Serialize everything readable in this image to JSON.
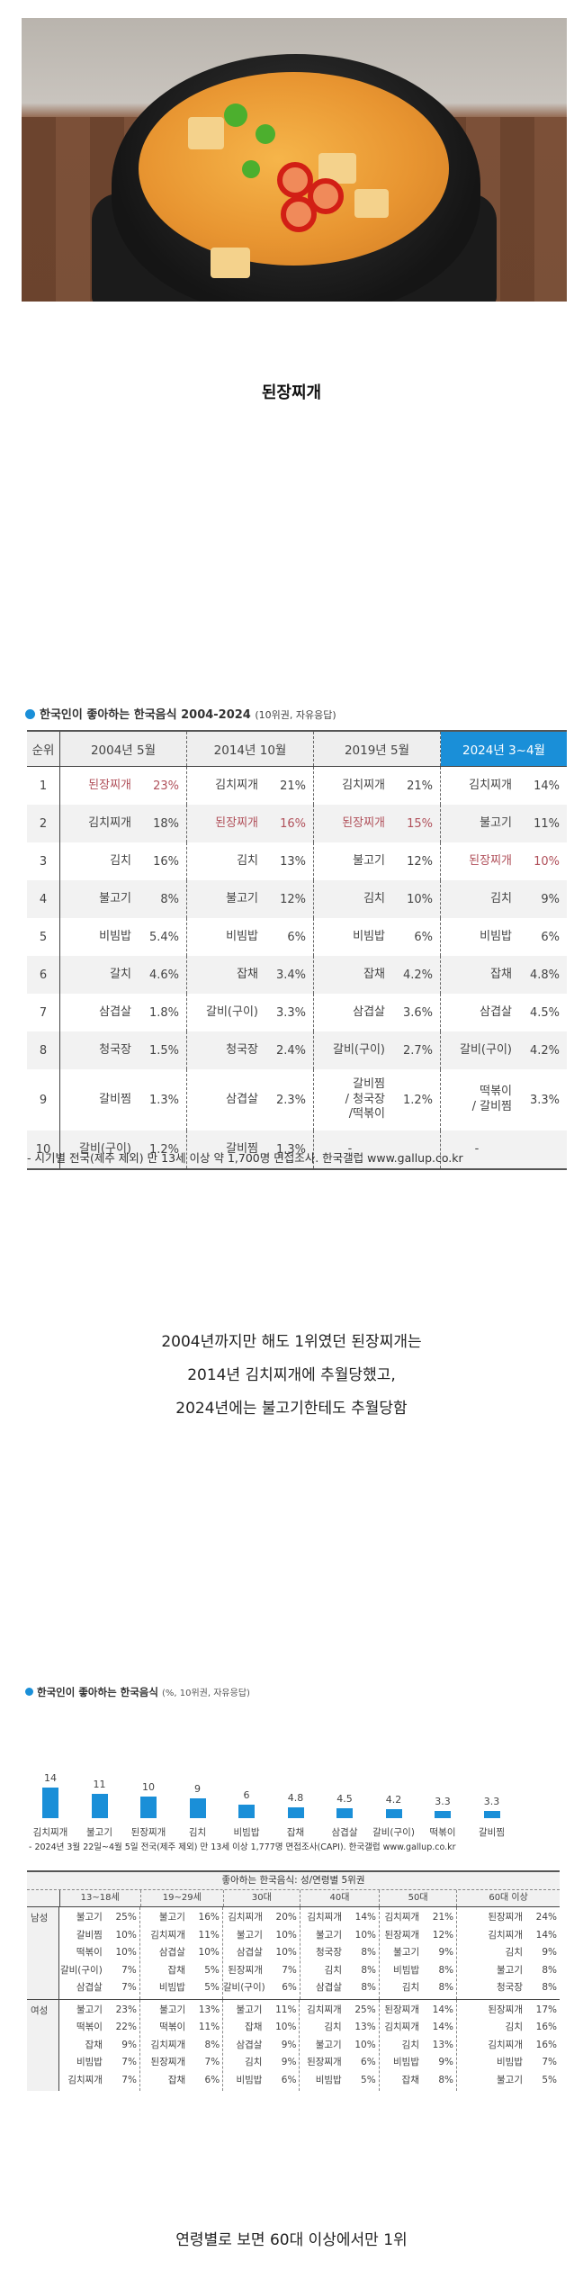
{
  "photo": {
    "alt": "된장찌개 in black earthenware pot (ttukbaegi) on wooden board"
  },
  "title": "된장찌개",
  "table1": {
    "header_title": "한국인이 좋아하는 한국음식 2004-2024",
    "header_sub": "(10위권, 자유응답)",
    "columns": [
      "순위",
      "2004년 5월",
      "2014년 10월",
      "2019년 5월",
      "2024년 3~4월"
    ],
    "highlight_color": "#1a8fd8",
    "highlight_text_color": "#b0505a",
    "rows": [
      {
        "rank": "1",
        "cells": [
          [
            "된장찌개",
            "23%"
          ],
          [
            "김치찌개",
            "21%"
          ],
          [
            "김치찌개",
            "21%"
          ],
          [
            "김치찌개",
            "14%"
          ]
        ]
      },
      {
        "rank": "2",
        "cells": [
          [
            "김치찌개",
            "18%"
          ],
          [
            "된장찌개",
            "16%"
          ],
          [
            "된장찌개",
            "15%"
          ],
          [
            "불고기",
            "11%"
          ]
        ]
      },
      {
        "rank": "3",
        "cells": [
          [
            "김치",
            "16%"
          ],
          [
            "김치",
            "13%"
          ],
          [
            "불고기",
            "12%"
          ],
          [
            "된장찌개",
            "10%"
          ]
        ]
      },
      {
        "rank": "4",
        "cells": [
          [
            "불고기",
            "8%"
          ],
          [
            "불고기",
            "12%"
          ],
          [
            "김치",
            "10%"
          ],
          [
            "김치",
            "9%"
          ]
        ]
      },
      {
        "rank": "5",
        "cells": [
          [
            "비빔밥",
            "5.4%"
          ],
          [
            "비빔밥",
            "6%"
          ],
          [
            "비빔밥",
            "6%"
          ],
          [
            "비빔밥",
            "6%"
          ]
        ]
      },
      {
        "rank": "6",
        "cells": [
          [
            "갈치",
            "4.6%"
          ],
          [
            "잡채",
            "3.4%"
          ],
          [
            "잡채",
            "4.2%"
          ],
          [
            "잡채",
            "4.8%"
          ]
        ]
      },
      {
        "rank": "7",
        "cells": [
          [
            "삼겹살",
            "1.8%"
          ],
          [
            "갈비(구이)",
            "3.3%"
          ],
          [
            "삼겹살",
            "3.6%"
          ],
          [
            "삼겹살",
            "4.5%"
          ]
        ]
      },
      {
        "rank": "8",
        "cells": [
          [
            "청국장",
            "1.5%"
          ],
          [
            "청국장",
            "2.4%"
          ],
          [
            "갈비(구이)",
            "2.7%"
          ],
          [
            "갈비(구이)",
            "4.2%"
          ]
        ]
      },
      {
        "rank": "9",
        "cells": [
          [
            "갈비찜",
            "1.3%"
          ],
          [
            "삼겹살",
            "2.3%"
          ],
          [
            "갈비찜\n/ 청국장\n/떡볶이",
            "1.2%"
          ],
          [
            "떡볶이\n/ 갈비찜",
            "3.3%"
          ]
        ]
      },
      {
        "rank": "10",
        "cells": [
          [
            "갈비(구이)",
            "1.2%"
          ],
          [
            "갈비찜",
            "1.3%"
          ],
          [
            "-",
            ""
          ],
          [
            "-",
            ""
          ]
        ]
      }
    ],
    "note": "- 시기별 전국(제주 제외) 만 13세 이상 약 1,700명 면접조사. 한국갤럽 www.gallup.co.kr"
  },
  "caption1": {
    "lines": [
      "2004년까지만 해도 1위였던 된장찌개는",
      "2014년 김치찌개에 추월당했고,",
      "2024년에는 불고기한테도 추월당함"
    ]
  },
  "chart_data": {
    "type": "bar",
    "title": "한국인이 좋아하는 한국음식",
    "subtitle": "(%, 10위권, 자유응답)",
    "categories": [
      "김치찌개",
      "불고기",
      "된장찌개",
      "김치",
      "비빔밥",
      "잡채",
      "삼겹살",
      "갈비(구이)",
      "떡볶이",
      "갈비찜"
    ],
    "values": [
      14,
      11,
      10,
      9,
      6,
      4.8,
      4.5,
      4.2,
      3.3,
      3.3
    ],
    "value_labels": [
      "14",
      "11",
      "10",
      "9",
      "6",
      "4.8",
      "4.5",
      "4.2",
      "3.3",
      "3.3"
    ],
    "xlabel": "",
    "ylabel": "%",
    "grid": false,
    "bar_color": "#1a8fd8",
    "note": "- 2024년 3월 22일~4월 5일 전국(제주 제외) 만 13세 이상 1,777명 면접조사(CAPI). 한국갤럽 www.gallup.co.kr"
  },
  "table2": {
    "title": "좋아하는 한국음식: 성/연령별 5위권",
    "age_groups": [
      "13~18세",
      "19~29세",
      "30대",
      "40대",
      "50대",
      "60대 이상"
    ],
    "groups": [
      {
        "sex": "남성",
        "columns": [
          [
            [
              "불고기",
              "25%"
            ],
            [
              "갈비찜",
              "10%"
            ],
            [
              "떡볶이",
              "10%"
            ],
            [
              "갈비(구이)",
              "7%"
            ],
            [
              "삼겹살",
              "7%"
            ]
          ],
          [
            [
              "불고기",
              "16%"
            ],
            [
              "김치찌개",
              "11%"
            ],
            [
              "삼겹살",
              "10%"
            ],
            [
              "잡채",
              "5%"
            ],
            [
              "비빔밥",
              "5%"
            ]
          ],
          [
            [
              "김치찌개",
              "20%"
            ],
            [
              "불고기",
              "10%"
            ],
            [
              "삼겹살",
              "10%"
            ],
            [
              "된장찌개",
              "7%"
            ],
            [
              "갈비(구이)",
              "6%"
            ]
          ],
          [
            [
              "김치찌개",
              "14%"
            ],
            [
              "불고기",
              "10%"
            ],
            [
              "청국장",
              "8%"
            ],
            [
              "김치",
              "8%"
            ],
            [
              "삼겹살",
              "8%"
            ]
          ],
          [
            [
              "김치찌개",
              "21%"
            ],
            [
              "된장찌개",
              "12%"
            ],
            [
              "불고기",
              "9%"
            ],
            [
              "비빔밥",
              "8%"
            ],
            [
              "김치",
              "8%"
            ]
          ],
          [
            [
              "된장찌개",
              "24%"
            ],
            [
              "김치찌개",
              "14%"
            ],
            [
              "김치",
              "9%"
            ],
            [
              "불고기",
              "8%"
            ],
            [
              "청국장",
              "8%"
            ]
          ]
        ]
      },
      {
        "sex": "여성",
        "columns": [
          [
            [
              "불고기",
              "23%"
            ],
            [
              "떡볶이",
              "22%"
            ],
            [
              "잡채",
              "9%"
            ],
            [
              "비빔밥",
              "7%"
            ],
            [
              "김치찌개",
              "7%"
            ]
          ],
          [
            [
              "불고기",
              "13%"
            ],
            [
              "떡볶이",
              "11%"
            ],
            [
              "김치찌개",
              "8%"
            ],
            [
              "된장찌개",
              "7%"
            ],
            [
              "잡채",
              "6%"
            ]
          ],
          [
            [
              "불고기",
              "11%"
            ],
            [
              "잡채",
              "10%"
            ],
            [
              "삼겹살",
              "9%"
            ],
            [
              "김치",
              "9%"
            ],
            [
              "비빔밥",
              "6%"
            ]
          ],
          [
            [
              "김치찌개",
              "25%"
            ],
            [
              "김치",
              "13%"
            ],
            [
              "불고기",
              "10%"
            ],
            [
              "된장찌개",
              "6%"
            ],
            [
              "비빔밥",
              "5%"
            ]
          ],
          [
            [
              "된장찌개",
              "14%"
            ],
            [
              "김치찌개",
              "14%"
            ],
            [
              "김치",
              "13%"
            ],
            [
              "비빔밥",
              "9%"
            ],
            [
              "잡채",
              "8%"
            ]
          ],
          [
            [
              "된장찌개",
              "17%"
            ],
            [
              "김치",
              "16%"
            ],
            [
              "김치찌개",
              "16%"
            ],
            [
              "비빔밥",
              "7%"
            ],
            [
              "불고기",
              "5%"
            ]
          ]
        ]
      }
    ]
  },
  "caption2": "연령별로 보면 60대 이상에서만 1위"
}
